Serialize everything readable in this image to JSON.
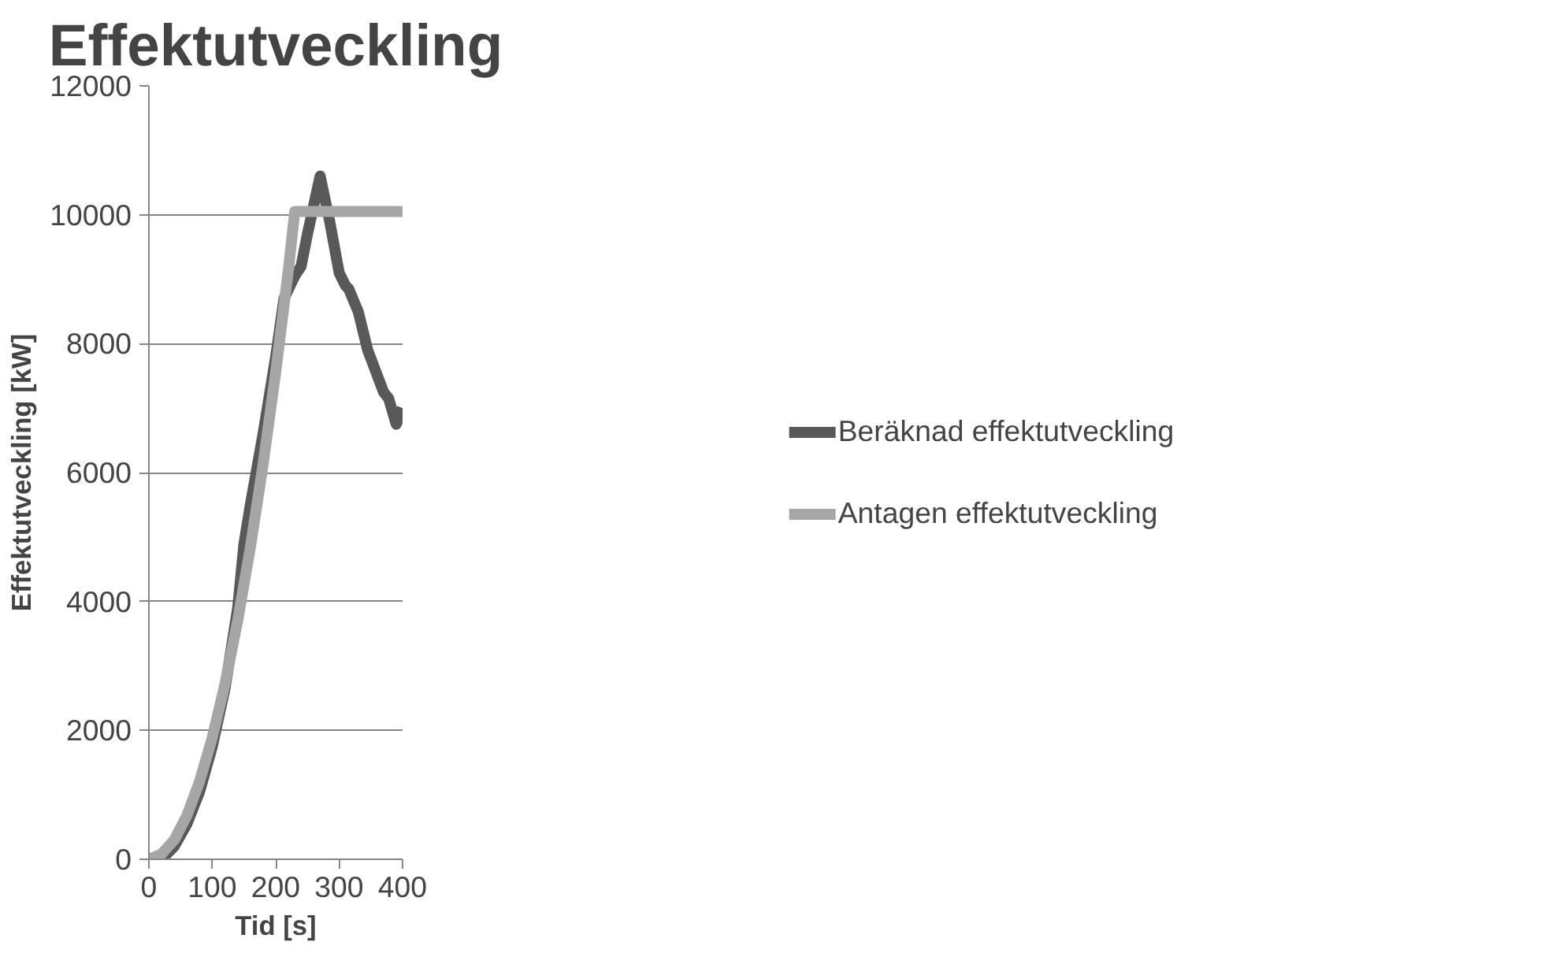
{
  "chart_data": {
    "type": "line",
    "title": "Effektutveckling",
    "xlabel": "Tid [s]",
    "ylabel": "Effektutveckling [kW]",
    "xlim": [
      0,
      400
    ],
    "ylim": [
      0,
      12000
    ],
    "xticks": [
      0,
      100,
      200,
      300,
      400
    ],
    "yticks": [
      0,
      2000,
      4000,
      6000,
      8000,
      10000,
      12000
    ],
    "grid": "y",
    "legend": "right",
    "marker": "none",
    "line_style": "solid",
    "series": [
      {
        "name": "Beräknad effektutveckling",
        "color": "#595959",
        "x": [
          0,
          20,
          40,
          60,
          80,
          100,
          120,
          140,
          150,
          160,
          180,
          200,
          213,
          230,
          240,
          250,
          270,
          285,
          300,
          310,
          315,
          330,
          345,
          370,
          378,
          390,
          400
        ],
        "values": [
          0,
          0,
          200,
          550,
          1050,
          1750,
          2650,
          3900,
          4900,
          5500,
          6600,
          7800,
          8700,
          9050,
          9200,
          9700,
          10600,
          9900,
          9100,
          8900,
          8850,
          8500,
          7900,
          7250,
          7150,
          6750,
          7000
        ]
      },
      {
        "name": "Antagen effektutveckling",
        "color": "#a6a6a6",
        "x": [
          0,
          20,
          40,
          60,
          80,
          100,
          120,
          140,
          160,
          180,
          200,
          220,
          230,
          400
        ],
        "values": [
          0,
          80,
          300,
          680,
          1210,
          1890,
          2720,
          3700,
          4840,
          6120,
          7560,
          9150,
          10050,
          10050
        ]
      }
    ]
  }
}
